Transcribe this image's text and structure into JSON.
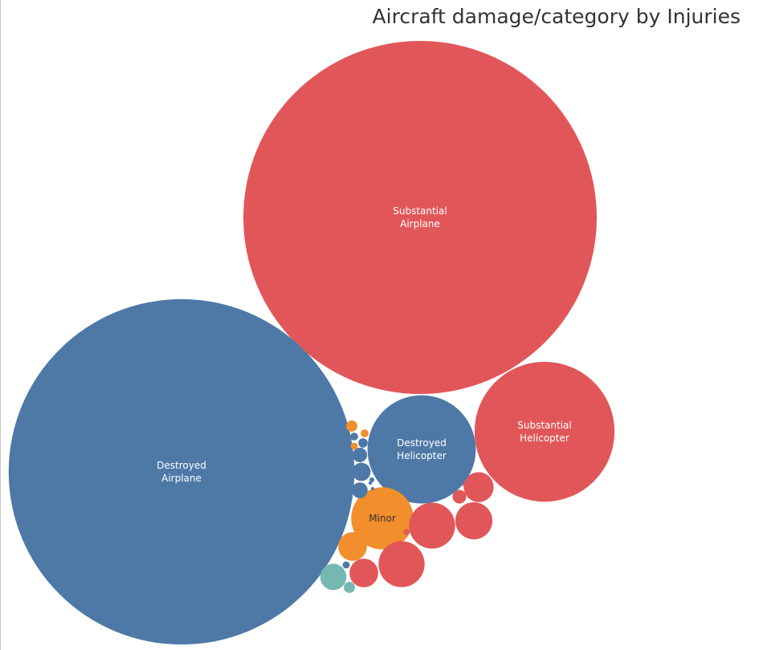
{
  "chart_data": {
    "type": "packed-bubble",
    "title": "Aircraft damage/category by Injuries",
    "colors": {
      "Destroyed": "#4e79a7",
      "Substantial": "#e15759",
      "Minor": "#f28e2b",
      "Other": "#76b7b2"
    },
    "bubbles": [
      {
        "damage": "Substantial",
        "category": "Airplane",
        "lines": [
          "Substantial",
          "Airplane"
        ],
        "value": 100
      },
      {
        "damage": "Destroyed",
        "category": "Airplane",
        "lines": [
          "Destroyed",
          "Airplane"
        ],
        "value": 95.7
      },
      {
        "damage": "Substantial",
        "category": "Helicopter",
        "lines": [
          "Substantial",
          "Helicopter"
        ],
        "value": 15.7
      },
      {
        "damage": "Destroyed",
        "category": "Helicopter",
        "lines": [
          "Destroyed",
          "Helicopter"
        ],
        "value": 9.4
      },
      {
        "damage": "Minor",
        "category": "",
        "lines": [
          "Minor"
        ],
        "value": 3.1
      },
      {
        "damage": "Substantial",
        "category": "",
        "lines": [],
        "value": 1.7
      },
      {
        "damage": "Substantial",
        "category": "",
        "lines": [],
        "value": 1.7
      },
      {
        "damage": "Substantial",
        "category": "",
        "lines": [],
        "value": 1.1
      },
      {
        "damage": "Substantial",
        "category": "",
        "lines": [],
        "value": 0.72
      },
      {
        "damage": "Substantial",
        "category": "",
        "lines": [],
        "value": 0.66
      },
      {
        "damage": "Minor",
        "category": "",
        "lines": [],
        "value": 0.66
      },
      {
        "damage": "Other",
        "category": "",
        "lines": [],
        "value": 0.55
      },
      {
        "damage": "Destroyed",
        "category": "",
        "lines": [],
        "value": 0.27
      },
      {
        "damage": "Destroyed",
        "category": "",
        "lines": [],
        "value": 0.2
      },
      {
        "damage": "Destroyed",
        "category": "",
        "lines": [],
        "value": 0.17
      },
      {
        "damage": "Substantial",
        "category": "",
        "lines": [],
        "value": 0.15
      },
      {
        "damage": "Other",
        "category": "",
        "lines": [],
        "value": 0.1
      },
      {
        "damage": "Minor",
        "category": "",
        "lines": [],
        "value": 0.1
      },
      {
        "damage": "Destroyed",
        "category": "",
        "lines": [],
        "value": 0.07
      },
      {
        "damage": "Minor",
        "category": "",
        "lines": [],
        "value": 0.05
      },
      {
        "damage": "Destroyed",
        "category": "",
        "lines": [],
        "value": 0.05
      },
      {
        "damage": "Minor",
        "category": "",
        "lines": [],
        "value": 0.04
      },
      {
        "damage": "Destroyed",
        "category": "",
        "lines": [],
        "value": 0.04
      },
      {
        "damage": "Substantial",
        "category": "",
        "lines": [],
        "value": 0.03
      },
      {
        "damage": "Destroyed",
        "category": "",
        "lines": [],
        "value": 0.02
      },
      {
        "damage": "Destroyed",
        "category": "",
        "lines": [],
        "value": 0.01
      },
      {
        "damage": "Destroyed",
        "category": "",
        "lines": [],
        "value": 0.01
      },
      {
        "damage": "Substantial",
        "category": "",
        "lines": [],
        "value": 0.01
      },
      {
        "damage": "Substantial",
        "category": "",
        "lines": [],
        "value": 0.01
      }
    ]
  }
}
